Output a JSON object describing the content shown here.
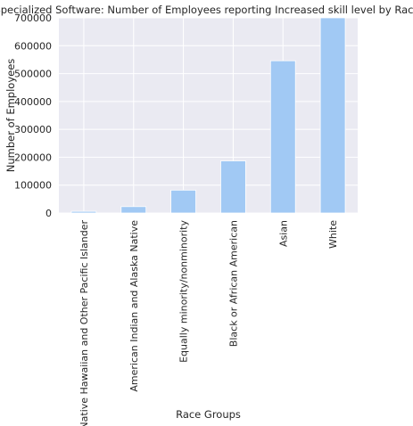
{
  "chart_data": {
    "type": "bar",
    "title": "Specialized Software: Number of Employees reporting Increased skill level by Race",
    "xlabel": "Race Groups",
    "ylabel": "Number of Employees",
    "categories": [
      "Native Hawaiian and Other Pacific Islander",
      "American Indian and Alaska Native",
      "Equally minority/nonminority",
      "Black or African American",
      "Asian",
      "White"
    ],
    "values": [
      6000,
      23000,
      82000,
      187000,
      546000,
      740000
    ],
    "ylim": [
      0,
      700000
    ],
    "yticks": [
      0,
      100000,
      200000,
      300000,
      400000,
      500000,
      600000,
      700000
    ],
    "grid": true,
    "bar_color": "#a1c9f4",
    "background_color": "#eaeaf2"
  }
}
